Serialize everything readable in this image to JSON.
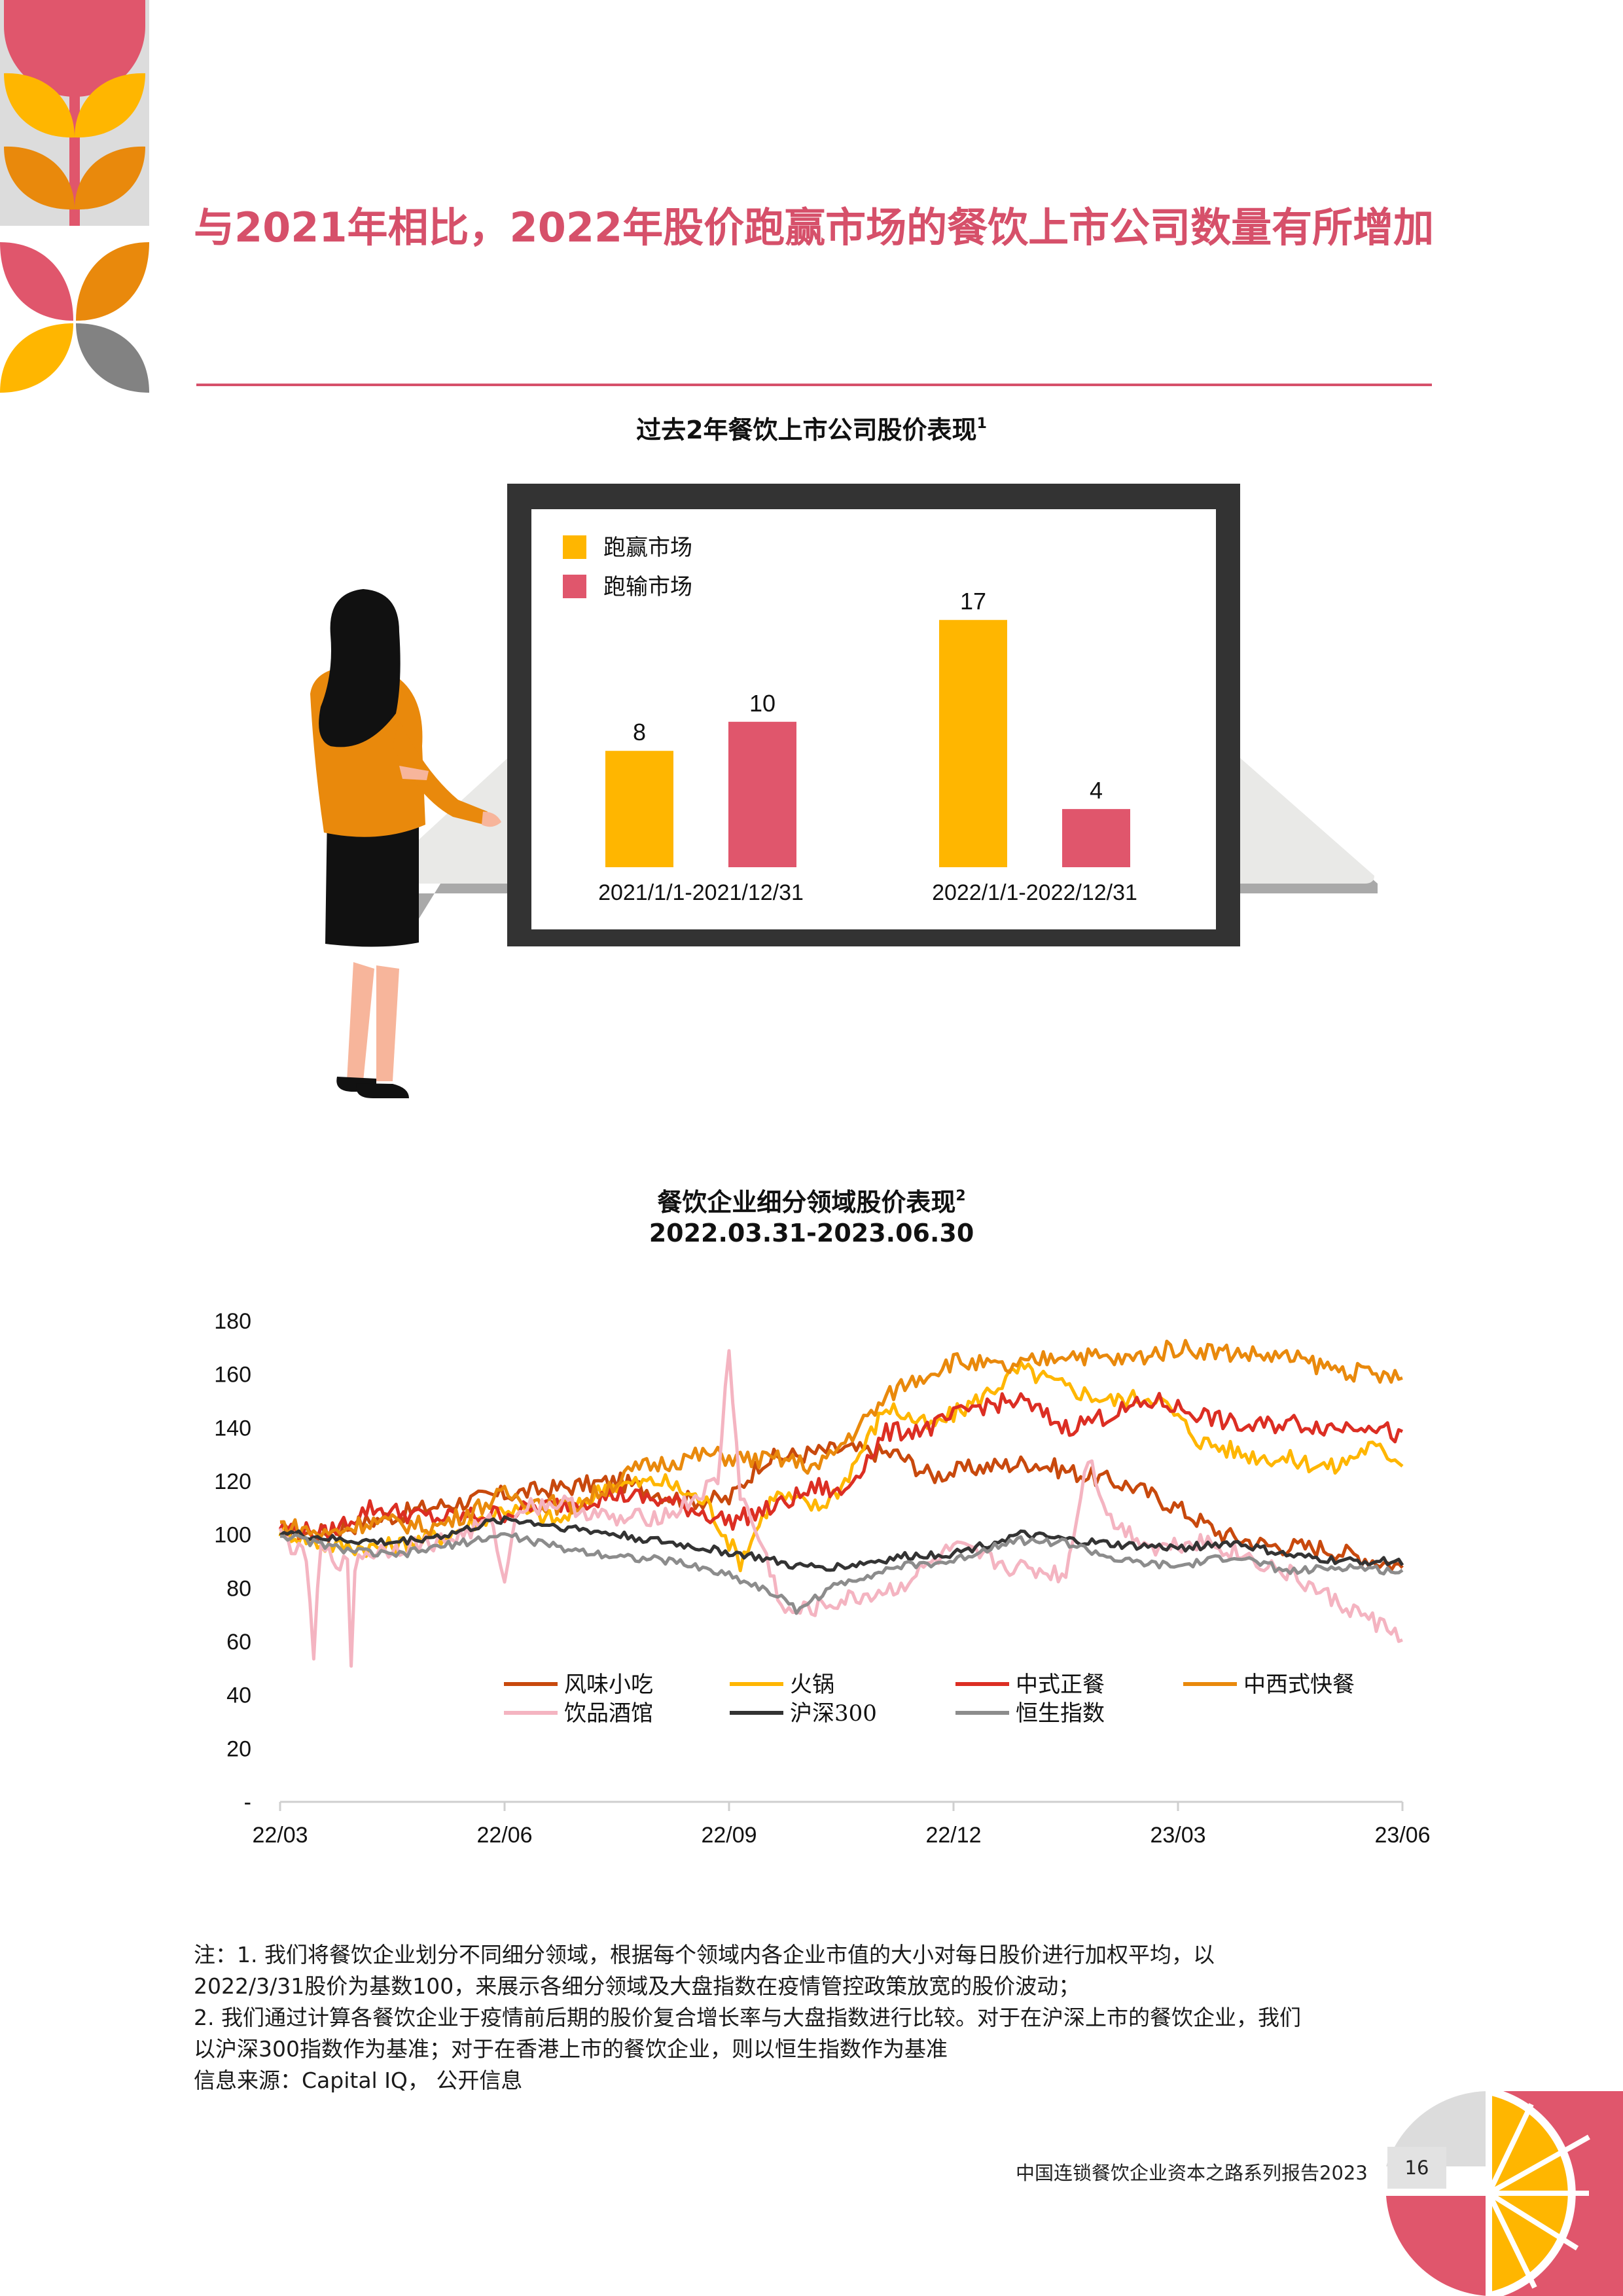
{
  "page": {
    "title": "与2021年相比，2022年股价跑赢市场的餐饮上市公司数量有所增加",
    "footer_text": "中国连锁餐饮企业资本之路系列报告2023",
    "page_number": "16"
  },
  "bar_chart": {
    "title": "过去2年餐饮上市公司股价表现",
    "title_note": "1"
  },
  "line_chart": {
    "title": "餐饮企业细分领域股价表现",
    "title_note": "2",
    "subtitle": "2022.03.31-2023.06.30"
  },
  "notes": [
    "注：1. 我们将餐饮企业划分不同细分领域，根据每个领域内各企业市值的大小对每日股价进行加权平均，以",
    "2022/3/31股价为基数100，来展示各细分领域及大盘指数在疫情管控政策放宽的股价波动；",
    "2. 我们通过计算各餐饮企业于疫情前后期的股价复合增长率与大盘指数进行比较。对于在沪深上市的餐饮企业，我们",
    "以沪深300指数作为基准；对于在香港上市的餐饮企业，则以恒生指数作为基准",
    "信息来源：Capital IQ， 公开信息"
  ],
  "chart_data": [
    {
      "type": "bar",
      "categories": [
        "2021/1/1-2021/12/31",
        "2022/1/1-2022/12/31"
      ],
      "series": [
        {
          "name": "跑赢市场",
          "color": "#ffb600",
          "values": [
            8,
            17
          ]
        },
        {
          "name": "跑输市场",
          "color": "#e0566c",
          "values": [
            10,
            4
          ]
        }
      ],
      "ylim": [
        0,
        18
      ],
      "legend_position": "top-left"
    },
    {
      "type": "line",
      "x_ticks": [
        "22/03",
        "22/06",
        "22/09",
        "22/12",
        "23/03",
        "23/06"
      ],
      "y_ticks": [
        "-",
        "20",
        "40",
        "60",
        "80",
        "100",
        "120",
        "140",
        "160",
        "180"
      ],
      "ylim": [
        0,
        180
      ],
      "legend_position": "bottom-center",
      "series": [
        {
          "name": "风味小吃",
          "color": "#c8490d",
          "anchors": [
            [
              0,
              102
            ],
            [
              0.03,
              100
            ],
            [
              0.08,
              105
            ],
            [
              0.13,
              110
            ],
            [
              0.2,
              115
            ],
            [
              0.3,
              120
            ],
            [
              0.36,
              113
            ],
            [
              0.4,
              113
            ],
            [
              0.43,
              128
            ],
            [
              0.5,
              132
            ],
            [
              0.55,
              130
            ],
            [
              0.58,
              122
            ],
            [
              0.62,
              125
            ],
            [
              0.67,
              127
            ],
            [
              0.72,
              122
            ],
            [
              0.76,
              118
            ],
            [
              0.8,
              110
            ],
            [
              0.84,
              100
            ],
            [
              0.88,
              96
            ],
            [
              0.93,
              95
            ],
            [
              1,
              88
            ]
          ]
        },
        {
          "name": "火锅",
          "color": "#ffb600",
          "anchors": [
            [
              0,
              102
            ],
            [
              0.04,
              96
            ],
            [
              0.09,
              95
            ],
            [
              0.15,
              100
            ],
            [
              0.2,
              110
            ],
            [
              0.25,
              105
            ],
            [
              0.29,
              118
            ],
            [
              0.34,
              120
            ],
            [
              0.38,
              112
            ],
            [
              0.41,
              90
            ],
            [
              0.44,
              115
            ],
            [
              0.48,
              110
            ],
            [
              0.5,
              118
            ],
            [
              0.54,
              148
            ],
            [
              0.58,
              140
            ],
            [
              0.62,
              150
            ],
            [
              0.66,
              162
            ],
            [
              0.7,
              155
            ],
            [
              0.74,
              150
            ],
            [
              0.78,
              152
            ],
            [
              0.82,
              135
            ],
            [
              0.86,
              130
            ],
            [
              0.9,
              128
            ],
            [
              0.94,
              125
            ],
            [
              0.97,
              133
            ],
            [
              1,
              128
            ]
          ]
        },
        {
          "name": "中式正餐",
          "color": "#dc2e23",
          "anchors": [
            [
              0,
              103
            ],
            [
              0.04,
              100
            ],
            [
              0.08,
              110
            ],
            [
              0.14,
              106
            ],
            [
              0.2,
              108
            ],
            [
              0.26,
              112
            ],
            [
              0.3,
              115
            ],
            [
              0.35,
              112
            ],
            [
              0.4,
              105
            ],
            [
              0.44,
              110
            ],
            [
              0.48,
              118
            ],
            [
              0.5,
              115
            ],
            [
              0.54,
              138
            ],
            [
              0.58,
              140
            ],
            [
              0.62,
              148
            ],
            [
              0.66,
              150
            ],
            [
              0.7,
              140
            ],
            [
              0.74,
              145
            ],
            [
              0.78,
              150
            ],
            [
              0.82,
              145
            ],
            [
              0.86,
              140
            ],
            [
              0.9,
              142
            ],
            [
              0.94,
              140
            ],
            [
              0.97,
              142
            ],
            [
              1,
              136
            ]
          ]
        },
        {
          "name": "中西式快餐",
          "color": "#e9890c",
          "anchors": [
            [
              0,
              104
            ],
            [
              0.04,
              100
            ],
            [
              0.08,
              105
            ],
            [
              0.14,
              103
            ],
            [
              0.2,
              115
            ],
            [
              0.26,
              110
            ],
            [
              0.32,
              125
            ],
            [
              0.38,
              130
            ],
            [
              0.42,
              128
            ],
            [
              0.45,
              128
            ],
            [
              0.48,
              125
            ],
            [
              0.51,
              138
            ],
            [
              0.55,
              155
            ],
            [
              0.6,
              165
            ],
            [
              0.65,
              162
            ],
            [
              0.7,
              168
            ],
            [
              0.75,
              165
            ],
            [
              0.8,
              170
            ],
            [
              0.85,
              168
            ],
            [
              0.9,
              166
            ],
            [
              0.94,
              162
            ],
            [
              1,
              158
            ]
          ]
        },
        {
          "name": "饮品酒馆",
          "color": "#f4b4c1",
          "anchors": [
            [
              0,
              100
            ],
            [
              0.025,
              90
            ],
            [
              0.03,
              50
            ],
            [
              0.035,
              95
            ],
            [
              0.06,
              88
            ],
            [
              0.063,
              48
            ],
            [
              0.067,
              92
            ],
            [
              0.1,
              95
            ],
            [
              0.15,
              98
            ],
            [
              0.19,
              105
            ],
            [
              0.2,
              80
            ],
            [
              0.21,
              110
            ],
            [
              0.25,
              112
            ],
            [
              0.3,
              105
            ],
            [
              0.35,
              108
            ],
            [
              0.39,
              120
            ],
            [
              0.4,
              170
            ],
            [
              0.41,
              115
            ],
            [
              0.43,
              95
            ],
            [
              0.45,
              70
            ],
            [
              0.5,
              75
            ],
            [
              0.55,
              80
            ],
            [
              0.6,
              95
            ],
            [
              0.65,
              88
            ],
            [
              0.7,
              85
            ],
            [
              0.72,
              130
            ],
            [
              0.74,
              105
            ],
            [
              0.78,
              95
            ],
            [
              0.82,
              98
            ],
            [
              0.86,
              92
            ],
            [
              0.9,
              85
            ],
            [
              0.94,
              75
            ],
            [
              1,
              62
            ]
          ]
        },
        {
          "name": "沪深300",
          "color": "#333333",
          "anchors": [
            [
              0,
              101
            ],
            [
              0.05,
              98
            ],
            [
              0.1,
              97
            ],
            [
              0.15,
              100
            ],
            [
              0.2,
              106
            ],
            [
              0.25,
              103
            ],
            [
              0.3,
              100
            ],
            [
              0.36,
              96
            ],
            [
              0.42,
              92
            ],
            [
              0.46,
              88
            ],
            [
              0.5,
              88
            ],
            [
              0.56,
              92
            ],
            [
              0.6,
              93
            ],
            [
              0.66,
              100
            ],
            [
              0.7,
              98
            ],
            [
              0.75,
              96
            ],
            [
              0.8,
              95
            ],
            [
              0.85,
              97
            ],
            [
              0.9,
              92
            ],
            [
              0.95,
              90
            ],
            [
              1,
              90
            ]
          ]
        },
        {
          "name": "恒生指数",
          "color": "#8c8c8c",
          "anchors": [
            [
              0,
              100
            ],
            [
              0.05,
              95
            ],
            [
              0.1,
              92
            ],
            [
              0.15,
              96
            ],
            [
              0.2,
              100
            ],
            [
              0.25,
              95
            ],
            [
              0.3,
              92
            ],
            [
              0.35,
              90
            ],
            [
              0.4,
              85
            ],
            [
              0.44,
              78
            ],
            [
              0.46,
              72
            ],
            [
              0.5,
              82
            ],
            [
              0.55,
              88
            ],
            [
              0.6,
              90
            ],
            [
              0.65,
              98
            ],
            [
              0.7,
              97
            ],
            [
              0.75,
              90
            ],
            [
              0.8,
              88
            ],
            [
              0.85,
              92
            ],
            [
              0.9,
              86
            ],
            [
              0.95,
              88
            ],
            [
              1,
              86
            ]
          ]
        }
      ]
    }
  ]
}
